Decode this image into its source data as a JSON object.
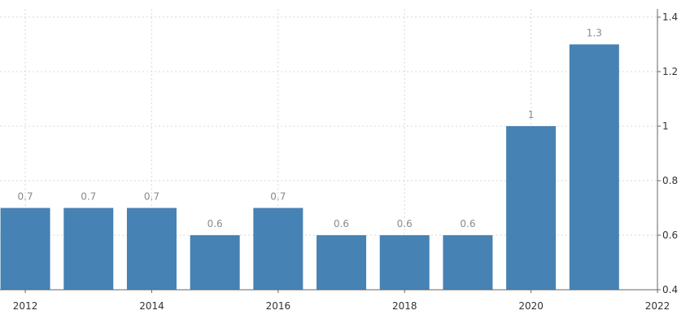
{
  "chart_data": {
    "type": "bar",
    "categories": [
      "2012",
      "2013",
      "2014",
      "2015",
      "2016",
      "2017",
      "2018",
      "2019",
      "2020",
      "2021"
    ],
    "values": [
      0.7,
      0.7,
      0.7,
      0.6,
      0.7,
      0.6,
      0.6,
      0.6,
      1,
      1.3
    ],
    "data_labels": [
      "0.7",
      "0.7",
      "0.7",
      "0.6",
      "0.7",
      "0.6",
      "0.6",
      "0.6",
      "1",
      "1.3"
    ],
    "x_ticks": [
      2012,
      2014,
      2016,
      2018,
      2020,
      2022
    ],
    "x_tick_labels": [
      "2012",
      "2014",
      "2016",
      "2018",
      "2020",
      "2022"
    ],
    "xlim": [
      2011.6,
      2022.0
    ],
    "y_ticks": [
      0.4,
      0.6,
      0.8,
      1,
      1.2,
      1.4
    ],
    "y_tick_labels": [
      "0.4",
      "0.6",
      "0.8",
      "1",
      "1.2",
      "1.4"
    ],
    "ylim": [
      0.4,
      1.4
    ],
    "y_axis_side": "right",
    "grid": true,
    "legend": false,
    "title": "",
    "xlabel": "",
    "ylabel": "",
    "colors": {
      "bar": "#4682b4",
      "grid": "#d9d9d9",
      "axis": "#666666",
      "tick_text": "#333333",
      "data_label_text": "#8a8a8a"
    }
  }
}
